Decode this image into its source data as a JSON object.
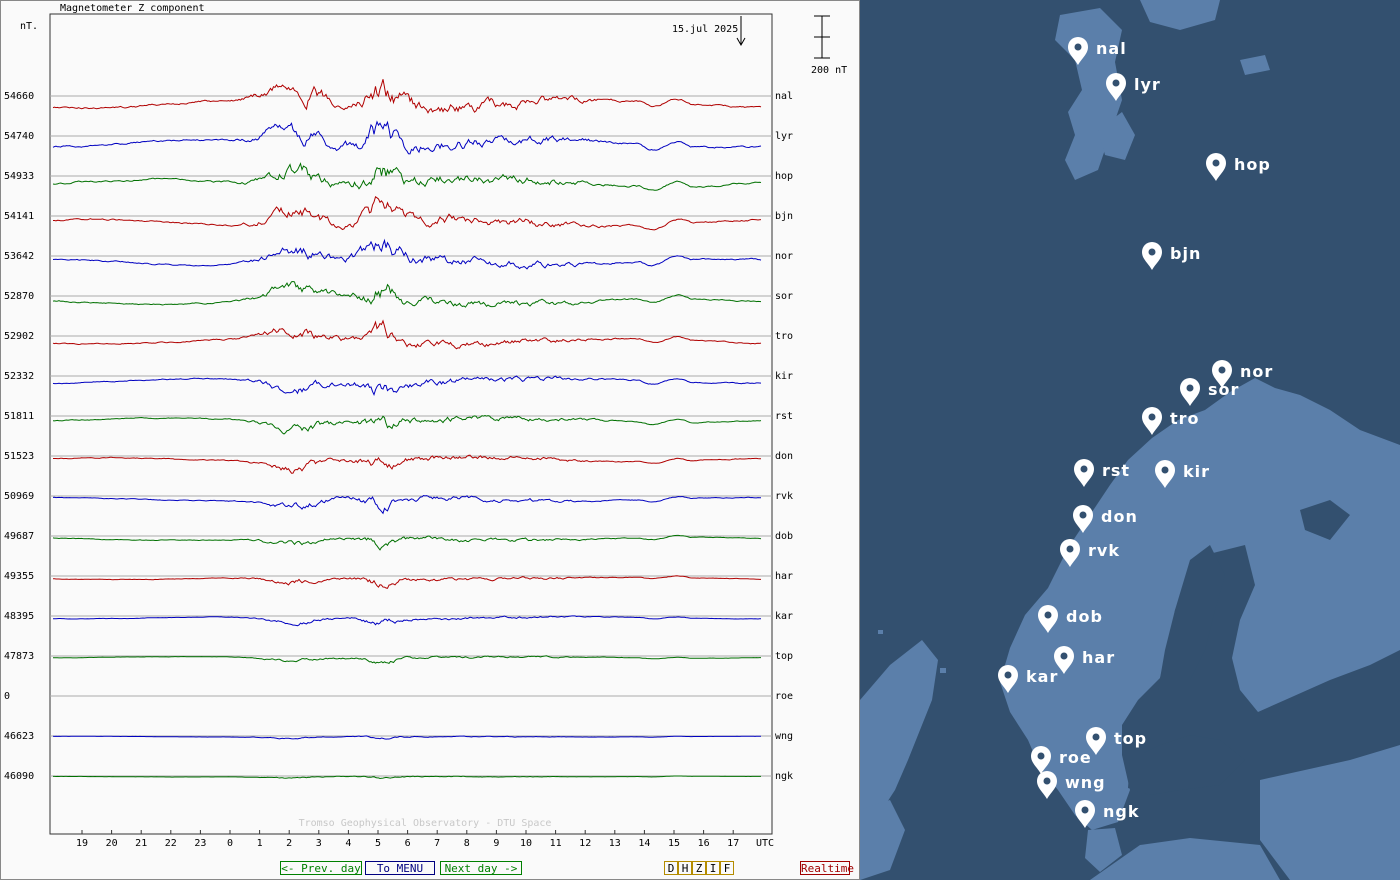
{
  "chart_data": {
    "type": "line",
    "title": "Magnetometer Z component",
    "date_label": "15.jul 2025",
    "y_unit_label": "nT.",
    "scale_bar_label": "200 nT",
    "x_unit_label": "UTC",
    "x_tick_labels": [
      "19",
      "20",
      "21",
      "22",
      "23",
      "0",
      "1",
      "2",
      "3",
      "4",
      "5",
      "6",
      "7",
      "8",
      "9",
      "10",
      "11",
      "12",
      "13",
      "14",
      "15",
      "16",
      "17"
    ],
    "credit": "Tromso Geophysical Observatory - DTU Space",
    "series": [
      {
        "name": "nal",
        "baseline": "54660",
        "color": "#b00000"
      },
      {
        "name": "lyr",
        "baseline": "54740",
        "color": "#0000c0"
      },
      {
        "name": "hop",
        "baseline": "54933",
        "color": "#007000"
      },
      {
        "name": "bjn",
        "baseline": "54141",
        "color": "#b00000"
      },
      {
        "name": "nor",
        "baseline": "53642",
        "color": "#0000c0"
      },
      {
        "name": "sor",
        "baseline": "52870",
        "color": "#007000"
      },
      {
        "name": "tro",
        "baseline": "52902",
        "color": "#b00000"
      },
      {
        "name": "kir",
        "baseline": "52332",
        "color": "#0000c0"
      },
      {
        "name": "rst",
        "baseline": "51811",
        "color": "#007000"
      },
      {
        "name": "don",
        "baseline": "51523",
        "color": "#b00000"
      },
      {
        "name": "rvk",
        "baseline": "50969",
        "color": "#0000c0"
      },
      {
        "name": "dob",
        "baseline": "49687",
        "color": "#007000"
      },
      {
        "name": "har",
        "baseline": "49355",
        "color": "#b00000"
      },
      {
        "name": "kar",
        "baseline": "48395",
        "color": "#0000c0"
      },
      {
        "name": "top",
        "baseline": "47873",
        "color": "#007000"
      },
      {
        "name": "roe",
        "baseline": "0",
        "color": "#b00000"
      },
      {
        "name": "wng",
        "baseline": "46623",
        "color": "#0000c0"
      },
      {
        "name": "ngk",
        "baseline": "46090",
        "color": "#007000"
      }
    ]
  },
  "nav": {
    "prev": "<- Prev. day",
    "menu": "To MENU",
    "next": "Next day ->",
    "components": [
      "D",
      "H",
      "Z",
      "I",
      "F"
    ],
    "realtime": "Realtime"
  },
  "map": {
    "stations": [
      "nal",
      "lyr",
      "hop",
      "bjn",
      "nor",
      "sor",
      "tro",
      "rst",
      "kir",
      "don",
      "rvk",
      "dob",
      "har",
      "kar",
      "top",
      "roe",
      "wng",
      "ngk"
    ]
  },
  "colors": {
    "red_trace": "#b00000",
    "blue_trace": "#0000c0",
    "green_trace": "#007000",
    "sea": "#33506f",
    "land": "#5b7faa",
    "grid": "#aaaaaa"
  }
}
